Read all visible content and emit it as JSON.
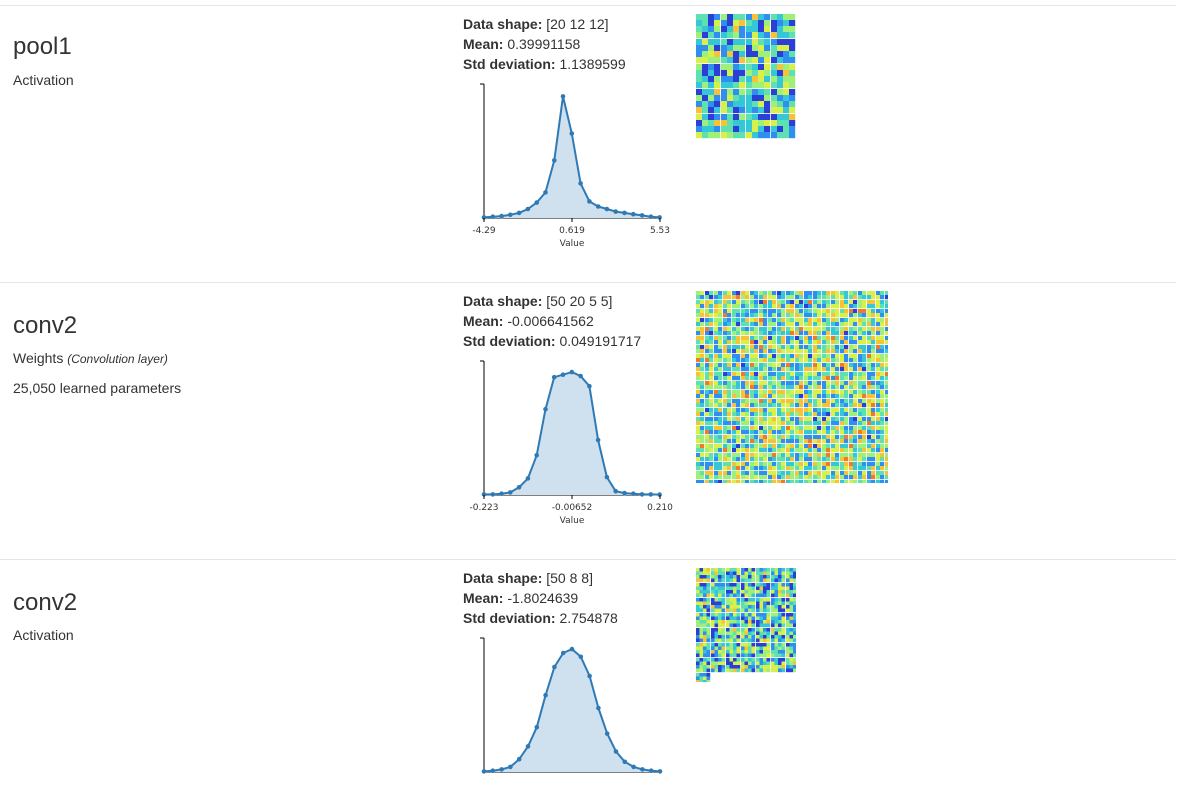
{
  "layers": [
    {
      "title": "pool1",
      "subtitle": "Activation",
      "subtitle_note": "",
      "params": "",
      "stats": {
        "shape_label": "Data shape:",
        "shape": "[20 12 12]",
        "mean_label": "Mean:",
        "mean": "0.39991158",
        "std_label": "Std deviation:",
        "std": "1.1389599"
      },
      "chart_data": {
        "type": "area",
        "xlabel": "Value",
        "x_ticks": [
          "-4.29",
          "0.619",
          "5.53"
        ],
        "xlim": [
          -4.29,
          5.53
        ],
        "ylim": [
          0,
          1
        ],
        "x": [
          -4.29,
          -3.8,
          -3.31,
          -2.82,
          -2.33,
          -1.84,
          -1.35,
          -0.86,
          -0.37,
          0.12,
          0.61,
          1.1,
          1.59,
          2.08,
          2.57,
          3.06,
          3.55,
          4.04,
          4.53,
          5.02,
          5.51
        ],
        "y": [
          0.005,
          0.01,
          0.015,
          0.025,
          0.04,
          0.07,
          0.12,
          0.2,
          0.45,
          0.95,
          0.66,
          0.27,
          0.13,
          0.09,
          0.07,
          0.05,
          0.04,
          0.03,
          0.02,
          0.01,
          0.005
        ]
      },
      "grid": {
        "cols": 4,
        "rows": 5,
        "cell": 24,
        "count": 20,
        "width": 100,
        "height": 125
      }
    },
    {
      "title": "conv2",
      "subtitle": "Weights",
      "subtitle_note": "(Convolution layer)",
      "params": "25,050 learned parameters",
      "stats": {
        "shape_label": "Data shape:",
        "shape": "[50 20 5 5]",
        "mean_label": "Mean:",
        "mean": "-0.006641562",
        "std_label": "Std deviation:",
        "std": "0.049191717"
      },
      "chart_data": {
        "type": "area",
        "xlabel": "Value",
        "x_ticks": [
          "-0.223",
          "-0.00652",
          "0.210"
        ],
        "xlim": [
          -0.223,
          0.21
        ],
        "ylim": [
          0,
          1
        ],
        "x": [
          -0.223,
          -0.2014,
          -0.1798,
          -0.1582,
          -0.1366,
          -0.115,
          -0.0934,
          -0.0718,
          -0.0502,
          -0.0286,
          -0.007,
          0.0146,
          0.0362,
          0.0578,
          0.0794,
          0.101,
          0.1226,
          0.1442,
          0.1658,
          0.1874,
          0.209
        ],
        "y": [
          0.005,
          0.005,
          0.01,
          0.02,
          0.06,
          0.13,
          0.31,
          0.67,
          0.92,
          0.94,
          0.96,
          0.93,
          0.85,
          0.43,
          0.14,
          0.03,
          0.015,
          0.01,
          0.005,
          0.005,
          0.003
        ]
      },
      "grid": {
        "cols": 24,
        "rows": 24,
        "cell": 8,
        "count": 1000,
        "width": 192,
        "height": 192,
        "mini": true
      }
    },
    {
      "title": "conv2",
      "subtitle": "Activation",
      "subtitle_note": "",
      "params": "",
      "stats": {
        "shape_label": "Data shape:",
        "shape": "[50 8 8]",
        "mean_label": "Mean:",
        "mean": "-1.8024639",
        "std_label": "Std deviation:",
        "std": "2.754878"
      },
      "chart_data": {
        "type": "area",
        "xlabel": "",
        "x_ticks": [],
        "xlim": [
          -10,
          6
        ],
        "ylim": [
          0,
          1
        ],
        "x": [
          -10,
          -9.2,
          -8.4,
          -7.6,
          -6.8,
          -6,
          -5.2,
          -4.4,
          -3.6,
          -2.8,
          -2,
          -1.2,
          -0.4,
          0.4,
          1.2,
          2,
          2.8,
          3.6,
          4.4,
          5.2,
          6
        ],
        "y": [
          0.005,
          0.01,
          0.02,
          0.04,
          0.1,
          0.2,
          0.35,
          0.6,
          0.82,
          0.93,
          0.96,
          0.9,
          0.75,
          0.5,
          0.3,
          0.16,
          0.08,
          0.04,
          0.02,
          0.01,
          0.005
        ]
      },
      "grid": {
        "cols": 7,
        "rows": 8,
        "cell": 14,
        "count": 50,
        "width": 100,
        "height": 114
      }
    }
  ],
  "colors": {
    "line": "#2f7ab5",
    "fill": "#cfe0ef",
    "axis": "#000000",
    "divider": "#e5e5e5"
  }
}
